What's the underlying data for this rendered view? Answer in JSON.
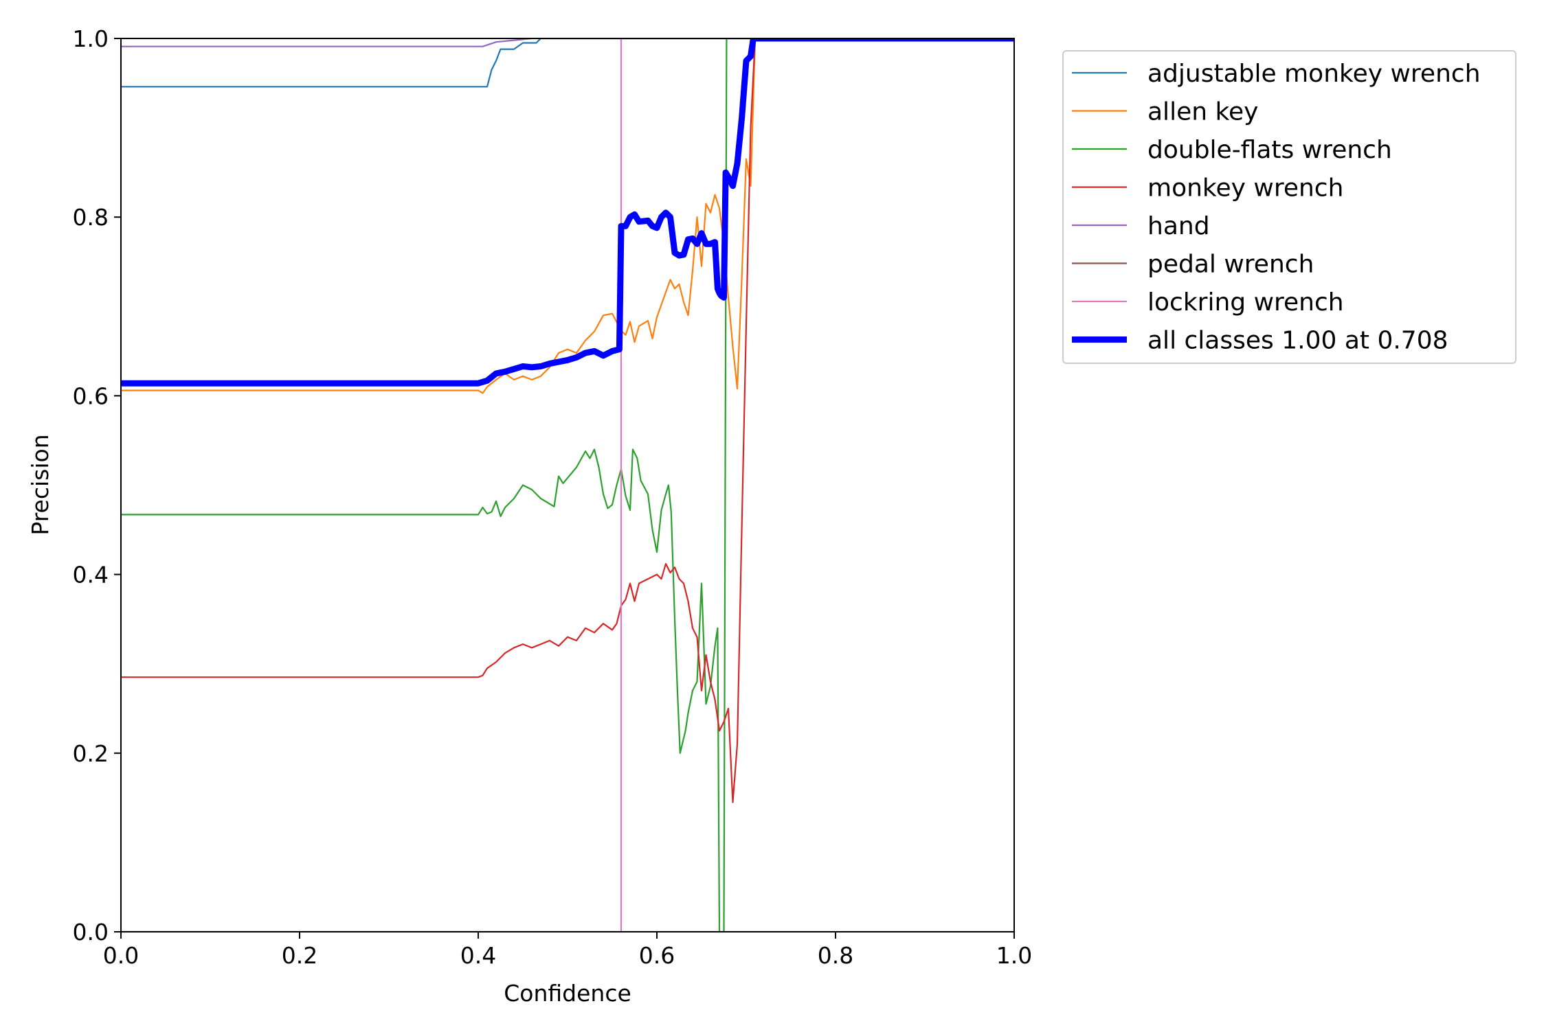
{
  "chart_data": {
    "type": "line",
    "title": "",
    "xlabel": "Confidence",
    "ylabel": "Precision",
    "xlim": [
      0.0,
      1.0
    ],
    "ylim": [
      0.0,
      1.0
    ],
    "xticks": [
      "0.0",
      "0.2",
      "0.4",
      "0.6",
      "0.8",
      "1.0"
    ],
    "yticks": [
      "0.0",
      "0.2",
      "0.4",
      "0.6",
      "0.8",
      "1.0"
    ],
    "grid": false,
    "legend_position": "outside-top-right",
    "series": [
      {
        "name": "adjustable monkey wrench",
        "color": "#1f77b4",
        "thick": false,
        "points": [
          [
            0.0,
            0.946
          ],
          [
            0.41,
            0.946
          ],
          [
            0.415,
            0.965
          ],
          [
            0.42,
            0.975
          ],
          [
            0.425,
            0.988
          ],
          [
            0.44,
            0.988
          ],
          [
            0.45,
            0.995
          ],
          [
            0.465,
            0.995
          ],
          [
            0.47,
            1.0
          ],
          [
            1.0,
            1.0
          ]
        ]
      },
      {
        "name": "allen key",
        "color": "#ff7f0e",
        "thick": false,
        "points": [
          [
            0.0,
            0.606
          ],
          [
            0.4,
            0.606
          ],
          [
            0.405,
            0.603
          ],
          [
            0.41,
            0.61
          ],
          [
            0.42,
            0.618
          ],
          [
            0.43,
            0.625
          ],
          [
            0.44,
            0.618
          ],
          [
            0.45,
            0.622
          ],
          [
            0.46,
            0.618
          ],
          [
            0.47,
            0.622
          ],
          [
            0.48,
            0.632
          ],
          [
            0.49,
            0.648
          ],
          [
            0.5,
            0.652
          ],
          [
            0.51,
            0.648
          ],
          [
            0.52,
            0.662
          ],
          [
            0.53,
            0.672
          ],
          [
            0.54,
            0.69
          ],
          [
            0.55,
            0.692
          ],
          [
            0.56,
            0.673
          ],
          [
            0.565,
            0.668
          ],
          [
            0.57,
            0.683
          ],
          [
            0.575,
            0.66
          ],
          [
            0.58,
            0.678
          ],
          [
            0.59,
            0.684
          ],
          [
            0.595,
            0.664
          ],
          [
            0.6,
            0.688
          ],
          [
            0.61,
            0.716
          ],
          [
            0.615,
            0.73
          ],
          [
            0.62,
            0.72
          ],
          [
            0.625,
            0.725
          ],
          [
            0.63,
            0.705
          ],
          [
            0.635,
            0.69
          ],
          [
            0.64,
            0.74
          ],
          [
            0.645,
            0.8
          ],
          [
            0.65,
            0.745
          ],
          [
            0.655,
            0.815
          ],
          [
            0.66,
            0.805
          ],
          [
            0.665,
            0.825
          ],
          [
            0.67,
            0.81
          ],
          [
            0.675,
            0.77
          ],
          [
            0.68,
            0.71
          ],
          [
            0.685,
            0.655
          ],
          [
            0.69,
            0.608
          ],
          [
            0.695,
            0.73
          ],
          [
            0.7,
            0.865
          ],
          [
            0.705,
            0.835
          ],
          [
            0.71,
            1.0
          ],
          [
            1.0,
            1.0
          ]
        ]
      },
      {
        "name": "double-flats wrench",
        "color": "#2ca02c",
        "thick": false,
        "points": [
          [
            0.0,
            0.467
          ],
          [
            0.4,
            0.467
          ],
          [
            0.405,
            0.475
          ],
          [
            0.41,
            0.468
          ],
          [
            0.415,
            0.47
          ],
          [
            0.42,
            0.482
          ],
          [
            0.425,
            0.465
          ],
          [
            0.43,
            0.475
          ],
          [
            0.44,
            0.485
          ],
          [
            0.45,
            0.5
          ],
          [
            0.46,
            0.495
          ],
          [
            0.47,
            0.485
          ],
          [
            0.485,
            0.476
          ],
          [
            0.49,
            0.51
          ],
          [
            0.495,
            0.502
          ],
          [
            0.5,
            0.508
          ],
          [
            0.51,
            0.52
          ],
          [
            0.52,
            0.538
          ],
          [
            0.525,
            0.53
          ],
          [
            0.53,
            0.54
          ],
          [
            0.535,
            0.52
          ],
          [
            0.54,
            0.49
          ],
          [
            0.545,
            0.474
          ],
          [
            0.55,
            0.478
          ],
          [
            0.555,
            0.5
          ],
          [
            0.56,
            0.518
          ],
          [
            0.565,
            0.488
          ],
          [
            0.57,
            0.472
          ],
          [
            0.573,
            0.54
          ],
          [
            0.578,
            0.53
          ],
          [
            0.582,
            0.505
          ],
          [
            0.59,
            0.49
          ],
          [
            0.595,
            0.45
          ],
          [
            0.6,
            0.425
          ],
          [
            0.605,
            0.472
          ],
          [
            0.61,
            0.49
          ],
          [
            0.613,
            0.5
          ],
          [
            0.616,
            0.47
          ],
          [
            0.62,
            0.35
          ],
          [
            0.623,
            0.27
          ],
          [
            0.626,
            0.2
          ],
          [
            0.632,
            0.225
          ],
          [
            0.635,
            0.245
          ],
          [
            0.64,
            0.27
          ],
          [
            0.645,
            0.28
          ],
          [
            0.65,
            0.39
          ],
          [
            0.655,
            0.255
          ],
          [
            0.66,
            0.275
          ],
          [
            0.665,
            0.32
          ],
          [
            0.668,
            0.34
          ],
          [
            0.67,
            0.0
          ],
          [
            0.675,
            0.0
          ],
          [
            0.678,
            1.0
          ],
          [
            1.0,
            1.0
          ]
        ]
      },
      {
        "name": "monkey wrench",
        "color": "#d62728",
        "thick": false,
        "points": [
          [
            0.0,
            0.285
          ],
          [
            0.4,
            0.285
          ],
          [
            0.405,
            0.287
          ],
          [
            0.41,
            0.295
          ],
          [
            0.42,
            0.302
          ],
          [
            0.43,
            0.312
          ],
          [
            0.44,
            0.318
          ],
          [
            0.45,
            0.322
          ],
          [
            0.46,
            0.318
          ],
          [
            0.47,
            0.322
          ],
          [
            0.48,
            0.326
          ],
          [
            0.49,
            0.32
          ],
          [
            0.5,
            0.33
          ],
          [
            0.51,
            0.326
          ],
          [
            0.52,
            0.34
          ],
          [
            0.53,
            0.335
          ],
          [
            0.54,
            0.345
          ],
          [
            0.55,
            0.338
          ],
          [
            0.555,
            0.345
          ],
          [
            0.56,
            0.365
          ],
          [
            0.565,
            0.372
          ],
          [
            0.57,
            0.39
          ],
          [
            0.575,
            0.37
          ],
          [
            0.58,
            0.39
          ],
          [
            0.59,
            0.395
          ],
          [
            0.6,
            0.4
          ],
          [
            0.605,
            0.395
          ],
          [
            0.61,
            0.412
          ],
          [
            0.615,
            0.402
          ],
          [
            0.62,
            0.408
          ],
          [
            0.625,
            0.395
          ],
          [
            0.63,
            0.39
          ],
          [
            0.635,
            0.37
          ],
          [
            0.64,
            0.34
          ],
          [
            0.645,
            0.33
          ],
          [
            0.65,
            0.27
          ],
          [
            0.655,
            0.31
          ],
          [
            0.66,
            0.28
          ],
          [
            0.665,
            0.26
          ],
          [
            0.67,
            0.225
          ],
          [
            0.675,
            0.235
          ],
          [
            0.68,
            0.25
          ],
          [
            0.685,
            0.145
          ],
          [
            0.69,
            0.21
          ],
          [
            0.695,
            0.45
          ],
          [
            0.7,
            0.68
          ],
          [
            0.705,
            0.9
          ],
          [
            0.71,
            1.0
          ],
          [
            1.0,
            1.0
          ]
        ]
      },
      {
        "name": "hand",
        "color": "#9467bd",
        "thick": false,
        "points": [
          [
            0.0,
            0.991
          ],
          [
            0.405,
            0.991
          ],
          [
            0.42,
            0.996
          ],
          [
            0.44,
            0.998
          ],
          [
            0.46,
            1.0
          ],
          [
            1.0,
            1.0
          ]
        ]
      },
      {
        "name": "pedal wrench",
        "color": "#8c564b",
        "thick": false,
        "points": [
          [
            0.0,
            0.0
          ],
          [
            1.0,
            0.0
          ]
        ]
      },
      {
        "name": "lockring wrench",
        "color": "#e377c2",
        "thick": false,
        "points": [
          [
            0.0,
            0.0
          ],
          [
            0.56,
            0.0
          ],
          [
            0.56,
            1.0
          ],
          [
            1.0,
            1.0
          ]
        ]
      },
      {
        "name": "all classes 1.00 at 0.708",
        "color": "#0000ff",
        "thick": true,
        "points": [
          [
            0.0,
            0.614
          ],
          [
            0.4,
            0.614
          ],
          [
            0.41,
            0.617
          ],
          [
            0.42,
            0.625
          ],
          [
            0.43,
            0.627
          ],
          [
            0.44,
            0.63
          ],
          [
            0.45,
            0.633
          ],
          [
            0.46,
            0.632
          ],
          [
            0.47,
            0.633
          ],
          [
            0.48,
            0.636
          ],
          [
            0.49,
            0.638
          ],
          [
            0.5,
            0.64
          ],
          [
            0.51,
            0.643
          ],
          [
            0.52,
            0.648
          ],
          [
            0.53,
            0.65
          ],
          [
            0.54,
            0.645
          ],
          [
            0.55,
            0.65
          ],
          [
            0.558,
            0.652
          ],
          [
            0.56,
            0.79
          ],
          [
            0.565,
            0.79
          ],
          [
            0.57,
            0.8
          ],
          [
            0.575,
            0.803
          ],
          [
            0.58,
            0.795
          ],
          [
            0.59,
            0.796
          ],
          [
            0.595,
            0.79
          ],
          [
            0.6,
            0.788
          ],
          [
            0.605,
            0.8
          ],
          [
            0.61,
            0.805
          ],
          [
            0.615,
            0.8
          ],
          [
            0.62,
            0.76
          ],
          [
            0.625,
            0.757
          ],
          [
            0.63,
            0.758
          ],
          [
            0.635,
            0.775
          ],
          [
            0.64,
            0.776
          ],
          [
            0.645,
            0.77
          ],
          [
            0.65,
            0.782
          ],
          [
            0.655,
            0.77
          ],
          [
            0.66,
            0.77
          ],
          [
            0.665,
            0.772
          ],
          [
            0.668,
            0.72
          ],
          [
            0.67,
            0.715
          ],
          [
            0.672,
            0.712
          ],
          [
            0.675,
            0.71
          ],
          [
            0.677,
            0.85
          ],
          [
            0.68,
            0.845
          ],
          [
            0.685,
            0.835
          ],
          [
            0.69,
            0.86
          ],
          [
            0.695,
            0.91
          ],
          [
            0.7,
            0.975
          ],
          [
            0.705,
            0.98
          ],
          [
            0.708,
            1.0
          ],
          [
            1.0,
            1.0
          ]
        ]
      }
    ]
  }
}
